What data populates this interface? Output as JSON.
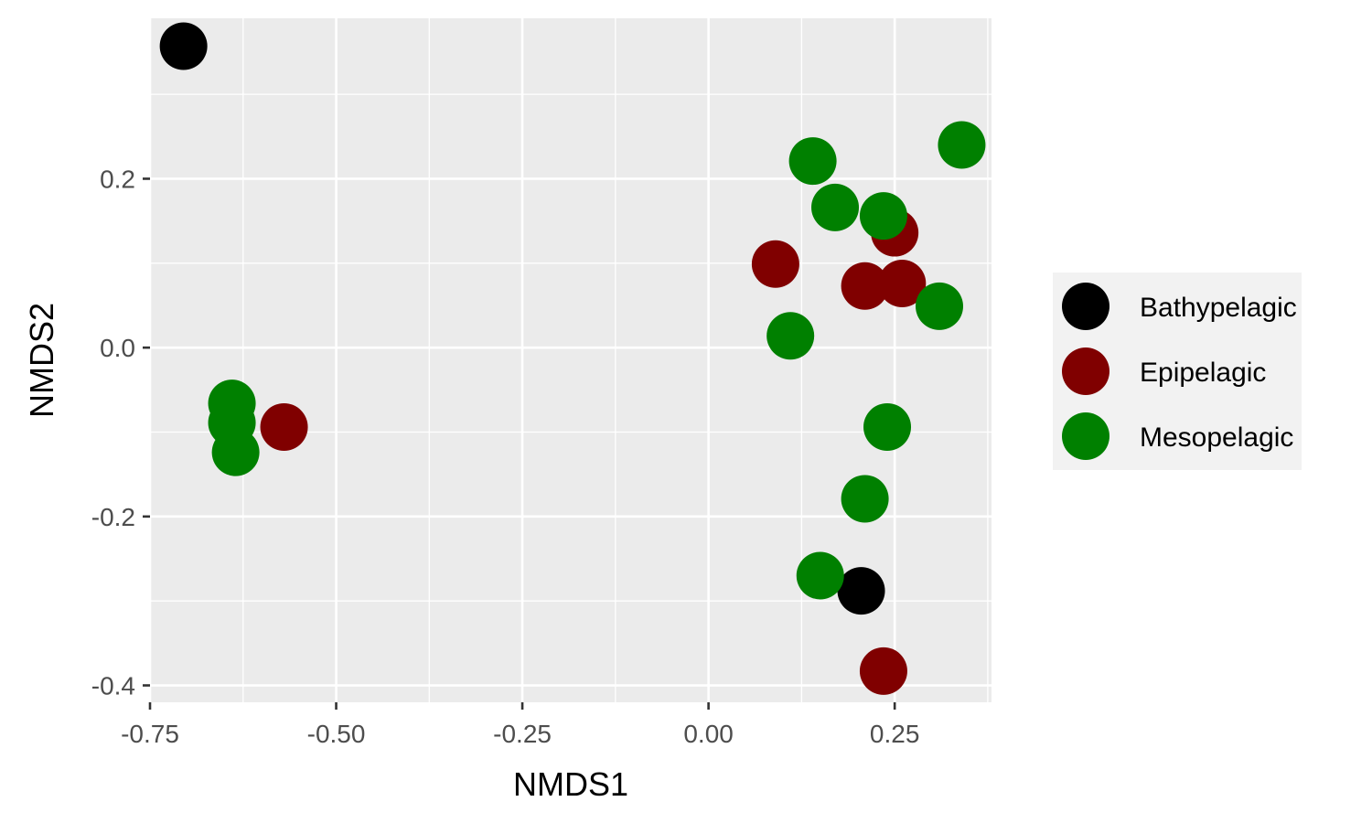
{
  "chart_data": {
    "type": "scatter",
    "xlabel": "NMDS1",
    "ylabel": "NMDS2",
    "xlim": [
      -0.75,
      0.38
    ],
    "ylim": [
      -0.42,
      0.39
    ],
    "x_ticks": [
      -0.75,
      -0.5,
      -0.25,
      0.0,
      0.25
    ],
    "x_tick_labels": [
      "-0.75",
      "-0.50",
      "-0.25",
      "0.00",
      "0.25"
    ],
    "y_ticks": [
      -0.4,
      -0.2,
      0.0,
      0.2
    ],
    "y_tick_labels": [
      "-0.4",
      "-0.2",
      "0.0",
      "0.2"
    ],
    "grid": true,
    "legend_position": "right",
    "series": [
      {
        "name": "Bathypelagic",
        "color": "#000000",
        "points": [
          [
            -0.705,
            0.357
          ],
          [
            0.205,
            -0.288
          ]
        ]
      },
      {
        "name": "Epipelagic",
        "color": "#800000",
        "points": [
          [
            -0.57,
            -0.094
          ],
          [
            0.09,
            0.099
          ],
          [
            0.25,
            0.136
          ],
          [
            0.21,
            0.073
          ],
          [
            0.26,
            0.076
          ],
          [
            0.235,
            -0.383
          ]
        ]
      },
      {
        "name": "Mesopelagic",
        "color": "#008000",
        "points": [
          [
            -0.64,
            -0.066
          ],
          [
            -0.64,
            -0.089
          ],
          [
            -0.635,
            -0.124
          ],
          [
            0.11,
            0.014
          ],
          [
            0.14,
            0.221
          ],
          [
            0.17,
            0.166
          ],
          [
            0.235,
            0.156
          ],
          [
            0.31,
            0.049
          ],
          [
            0.34,
            0.24
          ],
          [
            0.24,
            -0.094
          ],
          [
            0.21,
            -0.179
          ],
          [
            0.15,
            -0.27
          ]
        ]
      }
    ]
  }
}
